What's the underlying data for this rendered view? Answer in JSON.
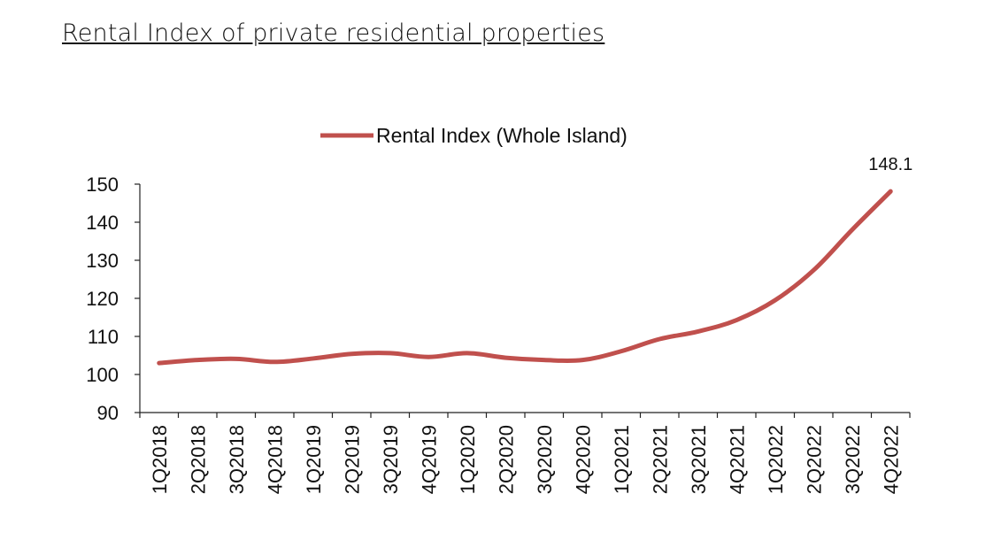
{
  "page": {
    "title": "Rental Index of private residential properties"
  },
  "chart_data": {
    "type": "line",
    "title": "",
    "xlabel": "",
    "ylabel": "",
    "categories": [
      "1Q2018",
      "2Q2018",
      "3Q2018",
      "4Q2018",
      "1Q2019",
      "2Q2019",
      "3Q2019",
      "4Q2019",
      "1Q2020",
      "2Q2020",
      "3Q2020",
      "4Q2020",
      "1Q2021",
      "2Q2021",
      "3Q2021",
      "4Q2021",
      "1Q2022",
      "2Q2022",
      "3Q2022",
      "4Q2022"
    ],
    "series": [
      {
        "name": "Rental Index (Whole Island)",
        "color": "#c0504d",
        "values": [
          103.0,
          103.8,
          104.1,
          103.3,
          104.2,
          105.4,
          105.6,
          104.6,
          105.6,
          104.4,
          103.8,
          103.8,
          106.1,
          109.3,
          111.3,
          114.3,
          119.5,
          127.4,
          138.0,
          148.1
        ]
      }
    ],
    "ylim": [
      90,
      150
    ],
    "yticks": [
      "90",
      "100",
      "110",
      "120",
      "130",
      "140",
      "150"
    ],
    "data_labels": [
      {
        "category": "4Q2022",
        "text": "148.1"
      }
    ],
    "legend_position": "top",
    "grid": false
  }
}
